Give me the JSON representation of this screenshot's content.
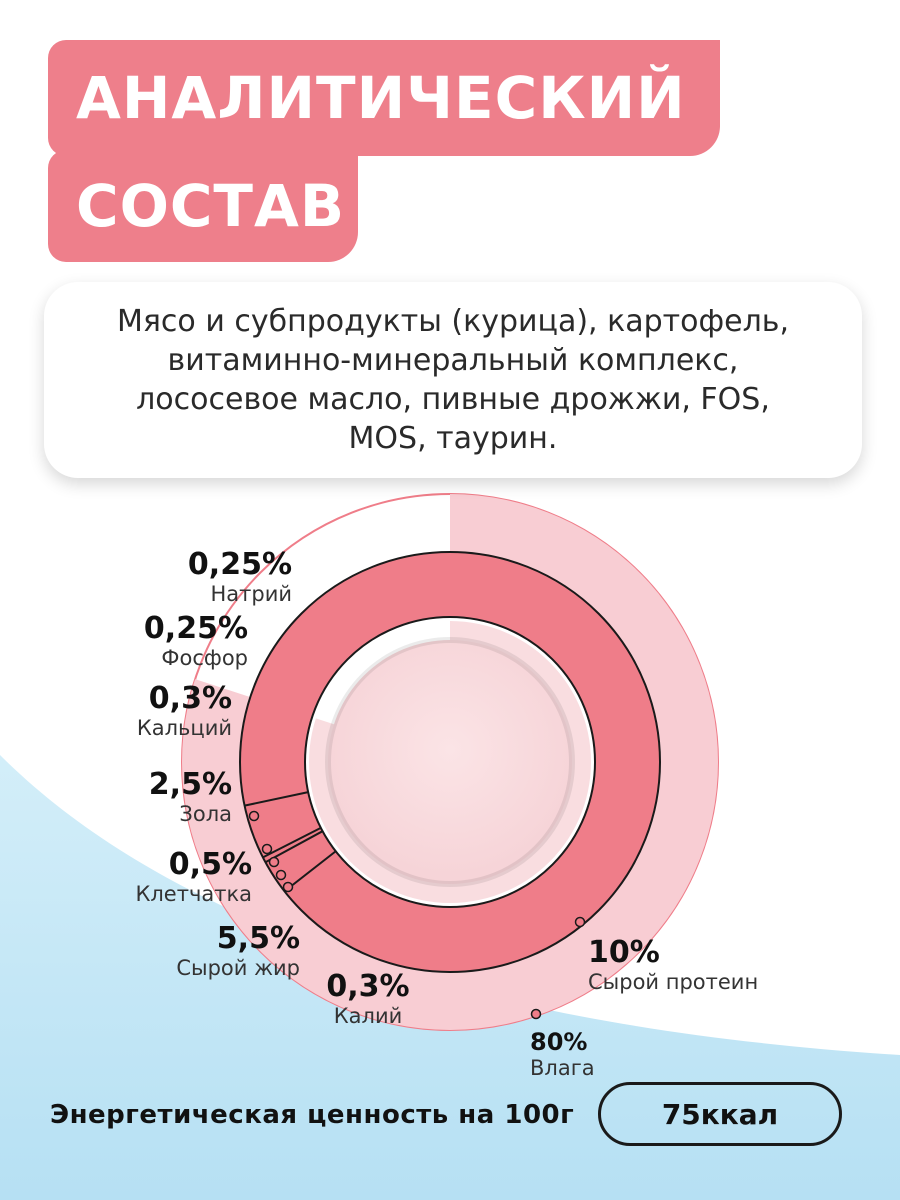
{
  "header": {
    "title_line1": "АНАЛИТИЧЕСКИЙ",
    "title_line2": "СОСТАВ"
  },
  "composition": {
    "text": "Мясо и субпродукты (курица), картофель, витаминно-минеральный комплекс, лососевое масло, пивные дрожжи, FOS, MOS, таурин."
  },
  "chart_data": {
    "type": "pie",
    "title": "",
    "unit": "%",
    "items": [
      {
        "name": "Влага",
        "label": "80%",
        "value": 80
      },
      {
        "name": "Сырой протеин",
        "label": "10%",
        "value": 10
      },
      {
        "name": "Сырой жир",
        "label": "5,5%",
        "value": 5.5
      },
      {
        "name": "Зола",
        "label": "2,5%",
        "value": 2.5
      },
      {
        "name": "Клетчатка",
        "label": "0,5%",
        "value": 0.5
      },
      {
        "name": "Калий",
        "label": "0,3%",
        "value": 0.3
      },
      {
        "name": "Кальций",
        "label": "0,3%",
        "value": 0.3
      },
      {
        "name": "Фосфор",
        "label": "0,25%",
        "value": 0.25
      },
      {
        "name": "Натрий",
        "label": "0,25%",
        "value": 0.25
      }
    ],
    "colors": {
      "moisture": "#f8cdd3",
      "protein": "#ef7d89",
      "fat": "#ef7d89",
      "center": "#f9dde0",
      "outline": "#1a1a1a",
      "marker": "#ef7d89"
    }
  },
  "energy": {
    "label": "Энергетическая ценность на 100г",
    "value": "75ккал"
  },
  "theme": {
    "accent": "#ee7f8b",
    "wave": "#bde4f4"
  }
}
